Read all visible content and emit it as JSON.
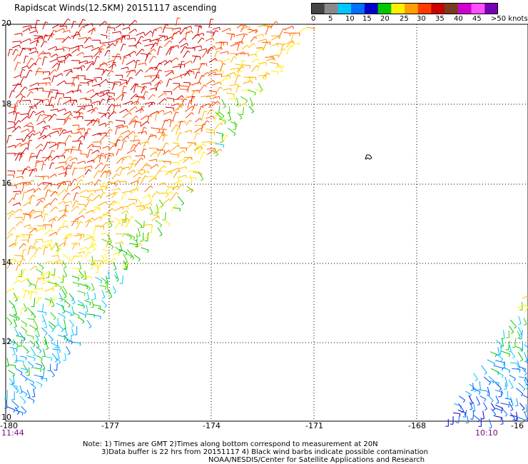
{
  "title": "Rapidscat Winds(12.5KM) 20151117 ascending",
  "colorbar": {
    "labels": [
      "0",
      "5",
      "10",
      "15",
      "20",
      "25",
      "30",
      "35",
      "40",
      "45",
      ">50 knots"
    ],
    "colors": [
      "#444444",
      "#8a8a8a",
      "#00c8ff",
      "#0070ff",
      "#0000c8",
      "#00c800",
      "#fff000",
      "#ffa000",
      "#ff3c00",
      "#c80000",
      "#7a3c1e",
      "#d000d0",
      "#ff50ff",
      "#7800b4"
    ]
  },
  "map": {
    "lon_labels": [
      "-180",
      "-177",
      "-174",
      "-171",
      "-168",
      "-16"
    ],
    "lat_labels": [
      "20",
      "18",
      "16",
      "14",
      "12",
      "10"
    ],
    "times": [
      "11:44",
      "10:10"
    ],
    "lon_range": [
      -180,
      -165
    ],
    "lat_range": [
      10,
      20
    ]
  },
  "notes": [
    "Note: 1) Times are GMT 2)Times along bottom correspond to measurement at 20N",
    "3)Data buffer is 22 hrs from 20151117 4) Black wind barbs indicate possible contamination",
    "NOAA/NESDIS/Center for Satellite Applications and Research"
  ]
}
